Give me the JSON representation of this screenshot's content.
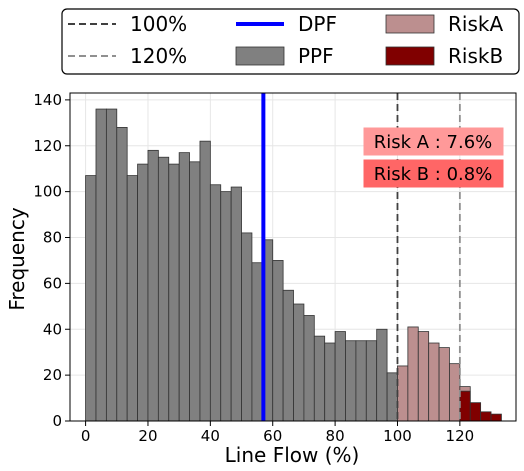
{
  "chart_data": {
    "type": "bar",
    "xlabel": "Line Flow (%)",
    "ylabel": "Frequency",
    "xlim": [
      -5,
      138
    ],
    "ylim": [
      0,
      143
    ],
    "xticks": [
      0,
      20,
      40,
      60,
      80,
      100,
      120
    ],
    "yticks": [
      0,
      20,
      40,
      60,
      80,
      100,
      120,
      140
    ],
    "grid": true,
    "legend_position": "top (outside)",
    "legend": [
      {
        "label": "100%",
        "style": "dashed",
        "color": "#404040"
      },
      {
        "label": "DPF",
        "style": "line",
        "color": "#0000ff"
      },
      {
        "label": "RiskA",
        "style": "patch",
        "color": "#bc8f8f"
      },
      {
        "label": "120%",
        "style": "dashed",
        "color": "#909090"
      },
      {
        "label": "PPF",
        "style": "patch",
        "color": "#808080"
      },
      {
        "label": "RiskB",
        "style": "patch",
        "color": "#800000"
      }
    ],
    "vlines": [
      {
        "x": 100,
        "color": "#404040",
        "style": "dashed"
      },
      {
        "x": 120,
        "color": "#909090",
        "style": "dashed"
      },
      {
        "x": 57,
        "color": "#0000ff",
        "style": "solid"
      }
    ],
    "annotations": [
      {
        "text": "Risk A : 7.6%",
        "bg": "#ff9999"
      },
      {
        "text": "Risk B : 0.8%",
        "bg": "#ff6666"
      }
    ],
    "bin_width": 3.33,
    "series": [
      {
        "name": "PPF",
        "color": "#808080",
        "bins": [
          [
            0,
            107
          ],
          [
            3.33,
            136
          ],
          [
            6.67,
            136
          ],
          [
            10,
            128
          ],
          [
            13.33,
            107
          ],
          [
            16.67,
            112
          ],
          [
            20,
            118
          ],
          [
            23.33,
            115
          ],
          [
            26.67,
            112
          ],
          [
            30,
            117
          ],
          [
            33.33,
            113
          ],
          [
            36.67,
            122
          ],
          [
            40,
            103
          ],
          [
            43.33,
            100
          ],
          [
            46.67,
            102
          ],
          [
            50,
            82
          ],
          [
            53.33,
            69
          ],
          [
            56.67,
            79
          ],
          [
            60,
            70
          ],
          [
            63.33,
            57
          ],
          [
            66.67,
            51
          ],
          [
            70,
            46
          ],
          [
            73.33,
            37
          ],
          [
            76.67,
            34
          ],
          [
            80,
            39
          ],
          [
            83.33,
            35
          ],
          [
            86.67,
            35
          ],
          [
            90,
            35
          ],
          [
            93.33,
            40
          ],
          [
            96.67,
            21
          ],
          [
            100,
            21
          ]
        ]
      },
      {
        "name": "RiskA",
        "color": "#bc8f8f",
        "bins": [
          [
            100,
            24
          ],
          [
            103.33,
            41
          ],
          [
            106.67,
            39
          ],
          [
            110,
            34
          ],
          [
            113.33,
            32
          ],
          [
            116.67,
            25
          ],
          [
            120,
            15
          ]
        ]
      },
      {
        "name": "RiskB",
        "color": "#800000",
        "bins": [
          [
            120,
            13
          ],
          [
            123.33,
            8
          ],
          [
            126.67,
            4
          ],
          [
            130,
            3
          ]
        ]
      }
    ]
  }
}
